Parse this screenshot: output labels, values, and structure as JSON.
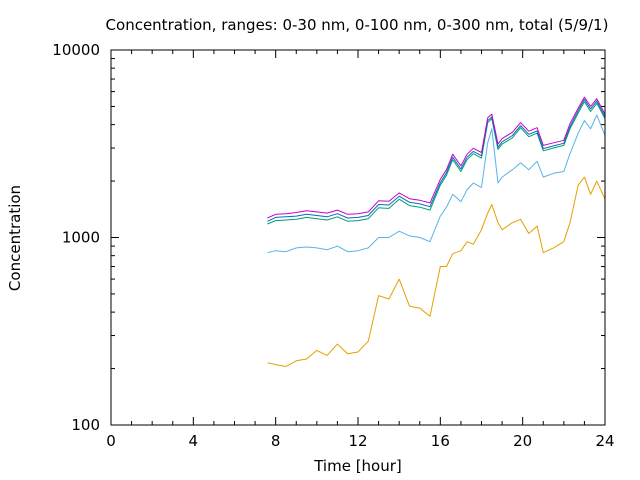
{
  "chart_data": {
    "type": "line",
    "title": "Concentration, ranges: 0-30 nm, 0-100 nm, 0-300 nm, total (5/9/1)",
    "xlabel": "Time [hour]",
    "ylabel": "Concentration",
    "xlim": [
      0,
      24
    ],
    "ylim": [
      100,
      10000
    ],
    "yscale": "log",
    "grid": false,
    "legend": "none",
    "x_ticks": [
      "0",
      "4",
      "8",
      "12",
      "16",
      "20",
      "24"
    ],
    "y_ticks": [
      "100",
      "1000",
      "10000"
    ],
    "x": [
      7.6,
      8.0,
      8.5,
      9.0,
      9.5,
      10.0,
      10.5,
      11.0,
      11.5,
      12.0,
      12.5,
      13.0,
      13.5,
      14.0,
      14.5,
      15.0,
      15.5,
      16.0,
      16.3,
      16.6,
      17.0,
      17.3,
      17.6,
      18.0,
      18.3,
      18.5,
      18.8,
      19.0,
      19.5,
      19.9,
      20.3,
      20.7,
      21.0,
      21.5,
      22.0,
      22.3,
      22.7,
      23.0,
      23.3,
      23.6,
      24.0
    ],
    "series": [
      {
        "color": "#e69f00",
        "values": [
          215,
          210,
          205,
          220,
          225,
          250,
          235,
          270,
          240,
          245,
          280,
          490,
          470,
          600,
          430,
          420,
          380,
          700,
          700,
          820,
          850,
          950,
          920,
          1100,
          1350,
          1500,
          1200,
          1100,
          1200,
          1250,
          1050,
          1150,
          830,
          880,
          950,
          1200,
          1900,
          2100,
          1700,
          2000,
          1600
        ]
      },
      {
        "color": "#56b4e9",
        "values": [
          830,
          850,
          840,
          880,
          890,
          880,
          860,
          900,
          840,
          850,
          880,
          1000,
          1000,
          1080,
          1020,
          1000,
          950,
          1300,
          1450,
          1700,
          1550,
          1800,
          1950,
          1850,
          3200,
          3800,
          1950,
          2100,
          2300,
          2500,
          2300,
          2550,
          2100,
          2200,
          2250,
          2800,
          3600,
          4200,
          3800,
          4500,
          3500
        ]
      },
      {
        "color": "#009e73",
        "values": [
          1180,
          1230,
          1240,
          1250,
          1280,
          1260,
          1240,
          1290,
          1220,
          1230,
          1260,
          1440,
          1430,
          1600,
          1480,
          1450,
          1400,
          1900,
          2150,
          2600,
          2250,
          2600,
          2800,
          2650,
          4100,
          4300,
          2950,
          3150,
          3400,
          3850,
          3450,
          3600,
          2900,
          3000,
          3100,
          3800,
          4600,
          5300,
          4700,
          5200,
          4300
        ]
      },
      {
        "color": "#0072b2",
        "values": [
          1220,
          1280,
          1290,
          1300,
          1330,
          1310,
          1290,
          1340,
          1270,
          1280,
          1310,
          1500,
          1490,
          1660,
          1540,
          1510,
          1460,
          1960,
          2220,
          2680,
          2320,
          2680,
          2880,
          2730,
          4200,
          4400,
          3030,
          3240,
          3500,
          3950,
          3550,
          3700,
          2980,
          3080,
          3180,
          3900,
          4750,
          5450,
          4850,
          5350,
          4400
        ]
      },
      {
        "color": "#cc00cc",
        "values": [
          1270,
          1330,
          1340,
          1360,
          1390,
          1370,
          1350,
          1400,
          1330,
          1340,
          1370,
          1570,
          1560,
          1730,
          1610,
          1580,
          1530,
          2040,
          2300,
          2780,
          2410,
          2780,
          2990,
          2840,
          4350,
          4550,
          3150,
          3370,
          3640,
          4100,
          3690,
          3850,
          3100,
          3200,
          3300,
          4050,
          4900,
          5600,
          5000,
          5500,
          4550
        ]
      }
    ]
  }
}
